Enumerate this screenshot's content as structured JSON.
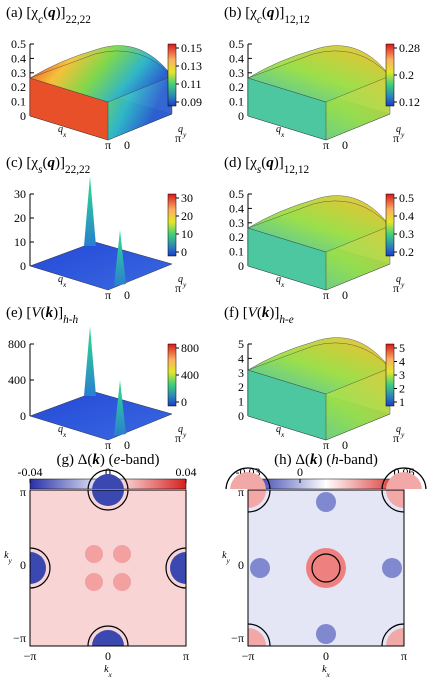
{
  "panels": [
    {
      "title": [
        {
          "text": "(a) [χ"
        },
        {
          "text": "c",
          "sub": true,
          "italic": true
        },
        {
          "text": "("
        },
        {
          "text": "q",
          "bold": true,
          "italic": true
        },
        {
          "text": ")]"
        },
        {
          "text": "22,22",
          "sub": true
        }
      ],
      "z_ticks": [
        0,
        0.1,
        0.2,
        0.3,
        0.4,
        0.5
      ],
      "colorbar_ticks": [
        0.15,
        0.13,
        0.11,
        0.09
      ],
      "floor_ticks": [
        "π",
        "0",
        "π"
      ]
    },
    {
      "title": [
        {
          "text": "(b) [χ"
        },
        {
          "text": "c",
          "sub": true,
          "italic": true
        },
        {
          "text": "("
        },
        {
          "text": "q",
          "bold": true,
          "italic": true
        },
        {
          "text": ")]"
        },
        {
          "text": "12,12",
          "sub": true
        }
      ],
      "z_ticks": [
        0,
        0.1,
        0.2,
        0.3,
        0.4,
        0.5
      ],
      "colorbar_ticks": [
        0.28,
        0.2,
        0.12
      ],
      "floor_ticks": [
        "π",
        "0",
        "π"
      ]
    },
    {
      "title": [
        {
          "text": "(c) [χ"
        },
        {
          "text": "s",
          "sub": true,
          "italic": true
        },
        {
          "text": "("
        },
        {
          "text": "q",
          "bold": true,
          "italic": true
        },
        {
          "text": ")]"
        },
        {
          "text": "22,22",
          "sub": true
        }
      ],
      "z_ticks": [
        0,
        10,
        20,
        30
      ],
      "colorbar_ticks": [
        30,
        20,
        10,
        0
      ],
      "floor_ticks": [
        "π",
        "0",
        "π"
      ]
    },
    {
      "title": [
        {
          "text": "(d) [χ"
        },
        {
          "text": "s",
          "sub": true,
          "italic": true
        },
        {
          "text": "("
        },
        {
          "text": "q",
          "bold": true,
          "italic": true
        },
        {
          "text": ")]"
        },
        {
          "text": "12,12",
          "sub": true
        }
      ],
      "z_ticks": [
        0,
        0.1,
        0.2,
        0.3,
        0.4,
        0.5
      ],
      "colorbar_ticks": [
        0.5,
        0.4,
        0.3,
        0.2
      ],
      "floor_ticks": [
        "π",
        "0",
        "π"
      ]
    },
    {
      "title": [
        {
          "text": "(e) ["
        },
        {
          "text": "V",
          "italic": true
        },
        {
          "text": "("
        },
        {
          "text": "k",
          "bold": true,
          "italic": true
        },
        {
          "text": ")]"
        },
        {
          "text": "h-h",
          "sub": true,
          "italic": true
        }
      ],
      "z_ticks": [
        0,
        400,
        800
      ],
      "colorbar_ticks": [
        800,
        400,
        0
      ],
      "floor_ticks": [
        "π",
        "0",
        "π"
      ]
    },
    {
      "title": [
        {
          "text": "(f) ["
        },
        {
          "text": "V",
          "italic": true
        },
        {
          "text": "("
        },
        {
          "text": "k",
          "bold": true,
          "italic": true
        },
        {
          "text": ")]"
        },
        {
          "text": "h-e",
          "sub": true,
          "italic": true
        }
      ],
      "z_ticks": [
        0,
        1,
        2,
        3,
        4,
        5
      ],
      "colorbar_ticks": [
        5,
        4,
        3,
        2,
        1
      ],
      "floor_ticks": [
        "π",
        "0",
        "π"
      ]
    }
  ],
  "axis_labels": {
    "x": [
      {
        "text": "q",
        "italic": true
      },
      {
        "text": "x",
        "sub": true,
        "italic": true
      }
    ],
    "y": [
      {
        "text": "q",
        "italic": true
      },
      {
        "text": "y",
        "sub": true,
        "italic": true
      }
    ]
  },
  "maps": [
    {
      "title": [
        {
          "text": "(g) Δ("
        },
        {
          "text": "k",
          "bold": true,
          "italic": true
        },
        {
          "text": ") ("
        },
        {
          "text": "e",
          "italic": true
        },
        {
          "text": "-band)"
        }
      ],
      "colorbar_ticks": [
        -0.04,
        0,
        0.04
      ],
      "x_ticks": [
        "−π",
        "0",
        "π"
      ],
      "y_ticks": [
        "π",
        "0",
        "−π"
      ]
    },
    {
      "title": [
        {
          "text": "(h) Δ("
        },
        {
          "text": "k",
          "bold": true,
          "italic": true
        },
        {
          "text": ") ("
        },
        {
          "text": "h",
          "italic": true
        },
        {
          "text": "-band)"
        }
      ],
      "colorbar_ticks": [
        -0.03,
        0,
        0.06
      ],
      "x_ticks": [
        "−π",
        "0",
        "π"
      ],
      "y_ticks": [
        "π",
        "0",
        "−π"
      ]
    }
  ],
  "map_axis_labels": {
    "x": [
      {
        "text": "k",
        "italic": true
      },
      {
        "text": "x",
        "sub": true,
        "italic": true
      }
    ],
    "y": [
      {
        "text": "k",
        "italic": true
      },
      {
        "text": "y",
        "sub": true,
        "italic": true
      }
    ]
  }
}
